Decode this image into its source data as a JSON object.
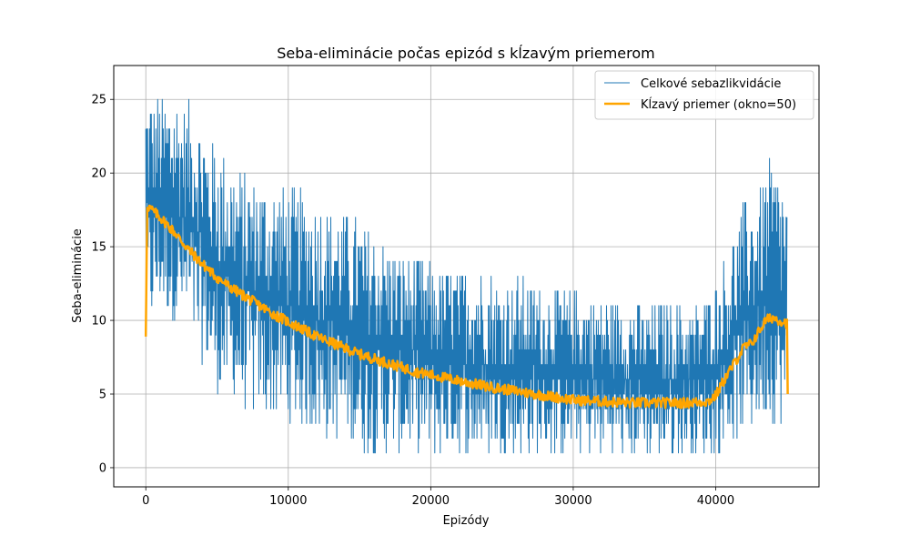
{
  "chart_data": {
    "type": "line",
    "title": "Seba-eliminácie počas epizód s kĺzavým priemerom",
    "xlabel": "Epizódy",
    "ylabel": "Seba-eliminácie",
    "xlim": [
      -2250,
      47250
    ],
    "ylim": [
      -1.3,
      27.3
    ],
    "xticks": [
      0,
      10000,
      20000,
      30000,
      40000
    ],
    "yticks": [
      0,
      5,
      10,
      15,
      20,
      25
    ],
    "grid": true,
    "legend_position": "top-right",
    "series": [
      {
        "name": "Celkové sebazlikvidácie",
        "color": "#1f77b4",
        "style": "thin line (per-episode values)",
        "summary_points": {
          "x": [
            0,
            1000,
            3000,
            5000,
            7000,
            10000,
            13000,
            16000,
            20000,
            25000,
            30000,
            35000,
            39000,
            40000,
            41000,
            42000,
            43000,
            44000,
            45000
          ],
          "min": [
            9,
            11,
            9,
            5,
            4,
            3,
            2,
            1,
            1,
            1,
            1,
            1,
            1,
            1,
            2,
            2,
            3,
            3,
            2
          ],
          "max": [
            26,
            25,
            25,
            22,
            20,
            19,
            18,
            16,
            14,
            13,
            12,
            11,
            11,
            13,
            15,
            18,
            19,
            21,
            19
          ]
        }
      },
      {
        "name": "Kĺzavý priemer (okno=50)",
        "color": "#ffa500",
        "style": "thick line",
        "x": [
          0,
          100,
          300,
          1000,
          2000,
          3000,
          4000,
          5000,
          6000,
          7000,
          8000,
          9000,
          10000,
          11000,
          12000,
          13000,
          14000,
          15000,
          16000,
          17000,
          18000,
          19000,
          20000,
          22000,
          24000,
          26000,
          28000,
          30000,
          32000,
          34000,
          36000,
          38000,
          39500,
          40000,
          40500,
          41000,
          41500,
          42000,
          42500,
          43000,
          43500,
          44000,
          44500,
          45000,
          45050
        ],
        "values": [
          8.9,
          17.8,
          17.6,
          17.0,
          16.0,
          14.8,
          13.8,
          12.9,
          12.2,
          11.6,
          11.0,
          10.4,
          9.9,
          9.4,
          8.9,
          8.5,
          8.1,
          7.7,
          7.4,
          7.1,
          6.8,
          6.5,
          6.3,
          5.9,
          5.5,
          5.2,
          4.9,
          4.6,
          4.5,
          4.4,
          4.4,
          4.4,
          4.5,
          4.9,
          5.8,
          6.6,
          7.4,
          8.2,
          8.4,
          9.2,
          10.0,
          10.2,
          10.0,
          9.8,
          5.0
        ]
      }
    ]
  }
}
